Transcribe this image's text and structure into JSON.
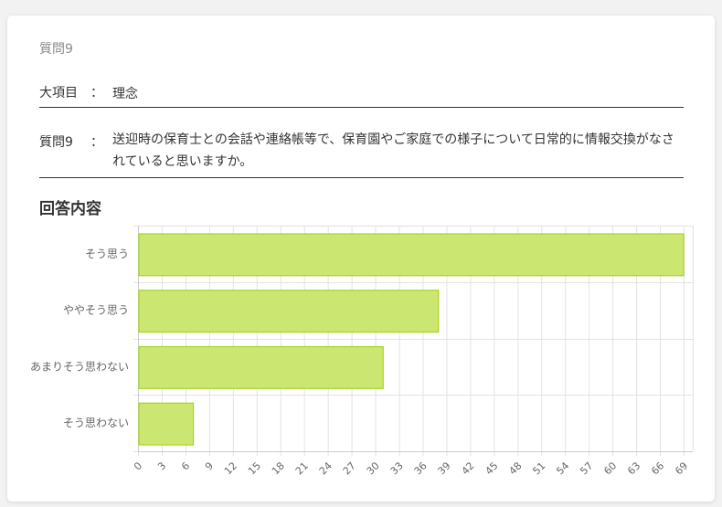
{
  "question_header": "質問9",
  "category": {
    "label": "大項目",
    "colon": "：",
    "value": "理念"
  },
  "question": {
    "label": "質問9",
    "colon": "：",
    "text": "送迎時の保育士との会話や連絡帳等で、保育園やご家庭での様子について日常的に情報交換がなされていると思いますか。"
  },
  "answer_section_title": "回答内容",
  "colors": {
    "bar_fill": "#cce771",
    "bar_stroke": "#a9d420",
    "grid": "#e3e3e3",
    "axis": "#cccccc",
    "tick_text": "#666666"
  },
  "chart_data": {
    "type": "bar",
    "orientation": "horizontal",
    "categories": [
      "そう思う",
      "ややそう思う",
      "あまりそう思わない",
      "そう思わない"
    ],
    "values": [
      69,
      38,
      31,
      7
    ],
    "xlim": [
      0,
      69
    ],
    "x_ticks": [
      "0",
      "3",
      "6",
      "9",
      "12",
      "15",
      "18",
      "21",
      "24",
      "27",
      "30",
      "33",
      "36",
      "39",
      "42",
      "45",
      "48",
      "51",
      "54",
      "57",
      "60",
      "63",
      "66",
      "69"
    ],
    "grid": true,
    "legend": "none"
  }
}
